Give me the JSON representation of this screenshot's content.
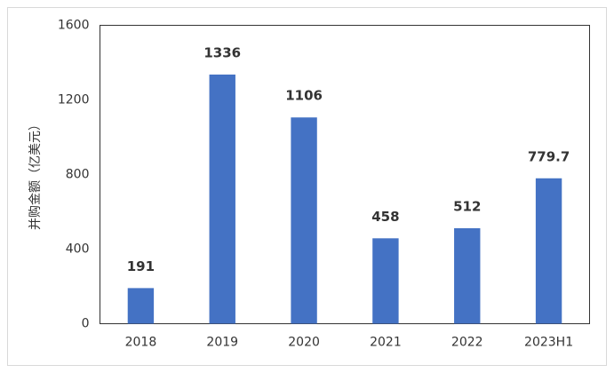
{
  "chart_data": {
    "type": "bar",
    "y_label": "并购金额（亿美元）",
    "categories": [
      "2018",
      "2019",
      "2020",
      "2021",
      "2022",
      "2023H1"
    ],
    "values": [
      191,
      1336,
      1106,
      458,
      512,
      779.7
    ],
    "color": "#4472c4",
    "ylim": [
      0,
      1600
    ],
    "yticks": [
      0,
      400,
      800,
      1200,
      1600
    ],
    "grid": false
  }
}
